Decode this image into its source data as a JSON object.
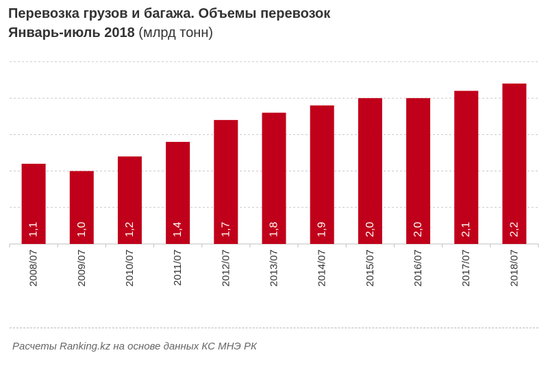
{
  "chart_data": {
    "type": "bar",
    "title": "Перевозка грузов и багажа. Объемы перевозок",
    "subtitle_bold": "Январь-июль 2018",
    "subtitle_unit": "(млрд тонн)",
    "categories": [
      "2008/07",
      "2009/07",
      "2010/07",
      "2011/07",
      "2012/07",
      "2013/07",
      "2014/07",
      "2015/07",
      "2016/07",
      "2017/07",
      "2018/07"
    ],
    "values": [
      1.1,
      1.0,
      1.2,
      1.4,
      1.7,
      1.8,
      1.9,
      2.0,
      2.0,
      2.1,
      2.2
    ],
    "value_labels": [
      "1,1",
      "1,0",
      "1,2",
      "1,4",
      "1,7",
      "1,8",
      "1,9",
      "2,0",
      "2,0",
      "2,1",
      "2,2"
    ],
    "ylim": [
      0,
      2.5
    ],
    "gridlines": true,
    "bar_color": "#c0001a",
    "grid_color": "#c8c8c8",
    "xlabel": "",
    "ylabel": ""
  },
  "footer": {
    "source": "Расчеты Ranking.kz на основе данных КС МНЭ РК"
  }
}
